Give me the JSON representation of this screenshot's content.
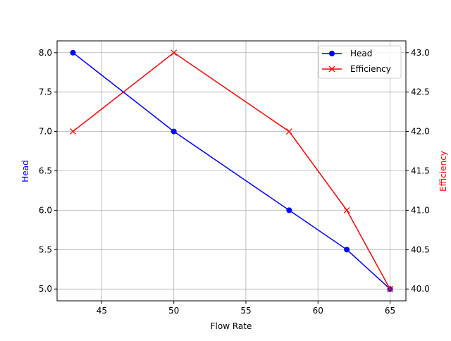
{
  "chart_data": {
    "type": "line",
    "xlabel": "Flow Rate",
    "ylabel_left": "Head",
    "ylabel_right": "Efficiency",
    "xlim": [
      41.9,
      66.1
    ],
    "ylim_left": [
      4.85,
      8.15
    ],
    "ylim_right": [
      39.85,
      43.15
    ],
    "x_ticks": [
      45,
      50,
      55,
      60,
      65
    ],
    "y_ticks_left": [
      "5.0",
      "5.5",
      "6.0",
      "6.5",
      "7.0",
      "7.5",
      "8.0"
    ],
    "y_ticks_right": [
      "40.0",
      "40.5",
      "41.0",
      "41.5",
      "42.0",
      "42.5",
      "43.0"
    ],
    "grid": true,
    "legend_position": "upper-right",
    "x": [
      43,
      50,
      58,
      62,
      65
    ],
    "series": [
      {
        "name": "Head",
        "axis": "left",
        "values": [
          8,
          7,
          6,
          5.5,
          5
        ],
        "color": "#0000ff",
        "marker": "circle"
      },
      {
        "name": "Efficiency",
        "axis": "right",
        "values": [
          42,
          43,
          42,
          41,
          40
        ],
        "color": "#ff0000",
        "marker": "x"
      }
    ]
  }
}
